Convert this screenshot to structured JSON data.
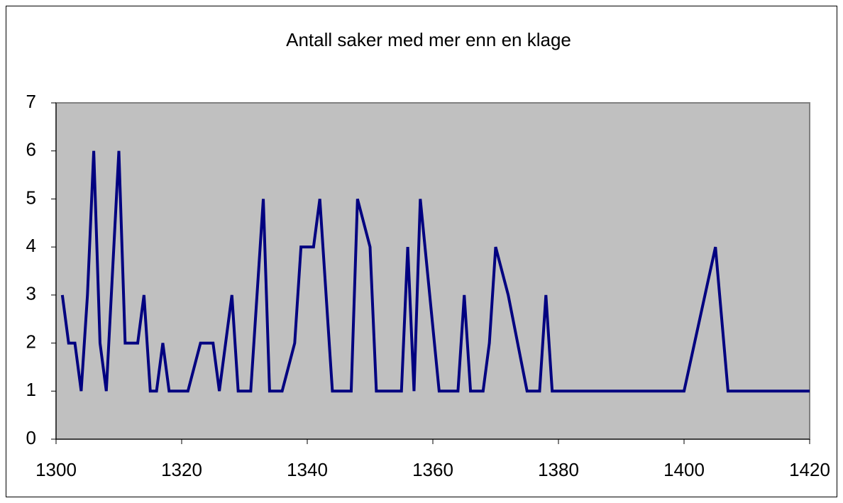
{
  "chart_data": {
    "type": "line",
    "title": "Antall saker med mer enn en klage",
    "x": [
      1301,
      1302,
      1303,
      1304,
      1305,
      1306,
      1307,
      1308,
      1310,
      1311,
      1313,
      1314,
      1315,
      1316,
      1317,
      1318,
      1321,
      1323,
      1325,
      1326,
      1328,
      1329,
      1331,
      1333,
      1334,
      1336,
      1338,
      1339,
      1341,
      1342,
      1344,
      1347,
      1348,
      1350,
      1351,
      1355,
      1356,
      1357,
      1358,
      1361,
      1364,
      1365,
      1366,
      1368,
      1369,
      1370,
      1372,
      1375,
      1377,
      1378,
      1379,
      1400,
      1405,
      1407,
      1420
    ],
    "values": [
      3,
      2,
      2,
      1,
      3,
      6,
      2,
      1,
      6,
      2,
      2,
      3,
      1,
      1,
      2,
      1,
      1,
      2,
      2,
      1,
      3,
      1,
      1,
      5,
      1,
      1,
      2,
      4,
      4,
      5,
      1,
      1,
      5,
      4,
      1,
      1,
      4,
      1,
      5,
      1,
      1,
      3,
      1,
      1,
      2,
      4,
      3,
      1,
      1,
      3,
      1,
      1,
      4,
      1,
      1
    ],
    "color": "#000080",
    "plot_background": "#c0c0c0",
    "xlim": [
      1300,
      1420
    ],
    "xticks": [
      1300,
      1320,
      1340,
      1360,
      1380,
      1400,
      1420
    ],
    "ylim": [
      0,
      7
    ],
    "yticks": [
      0,
      1,
      2,
      3,
      4,
      5,
      6,
      7
    ],
    "grid": false
  }
}
